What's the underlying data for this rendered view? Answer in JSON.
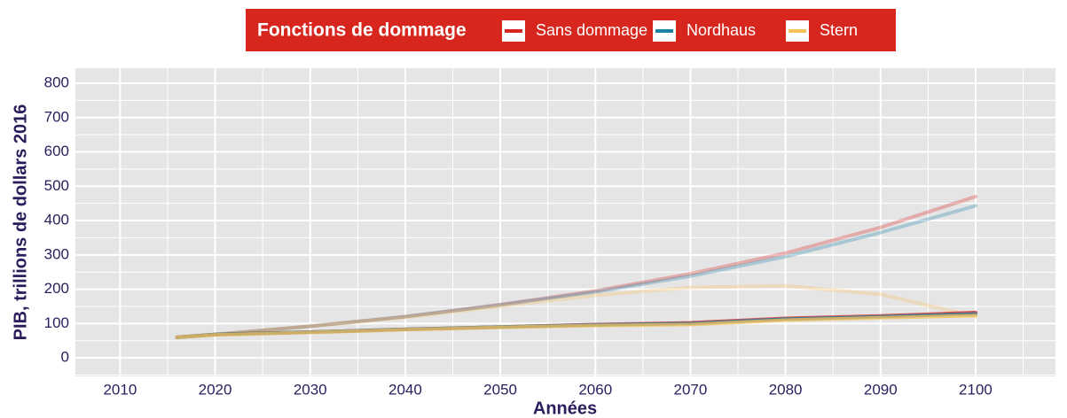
{
  "chart_data": {
    "type": "line",
    "legend_title": "Fonctions de dommage",
    "xlabel": "Années",
    "ylabel": "PIB, trillions de dollars 2016",
    "x": [
      2016,
      2020,
      2030,
      2040,
      2050,
      2060,
      2070,
      2080,
      2090,
      2100
    ],
    "series": [
      {
        "name": "Sans dommage",
        "color": "#d7261e",
        "values": [
          60,
          68,
          75,
          83,
          90,
          97,
          102,
          115,
          122,
          132
        ],
        "faded_values": [
          60,
          68,
          92,
          120,
          155,
          195,
          245,
          305,
          380,
          470
        ]
      },
      {
        "name": "Nordhaus",
        "color": "#1f80a8",
        "values": [
          60,
          68,
          75,
          83,
          90,
          96,
          100,
          113,
          120,
          128
        ],
        "faded_values": [
          60,
          68,
          92,
          120,
          154,
          192,
          238,
          295,
          365,
          443
        ]
      },
      {
        "name": "Stern",
        "color": "#f5c15a",
        "values": [
          60,
          67,
          74,
          82,
          89,
          94,
          97,
          110,
          117,
          123
        ],
        "faded_values": [
          60,
          68,
          92,
          118,
          150,
          182,
          205,
          210,
          185,
          120
        ]
      }
    ],
    "xlim": [
      2005.3,
      2108.4
    ],
    "xticks": [
      2010,
      2020,
      2030,
      2040,
      2050,
      2060,
      2070,
      2080,
      2090,
      2100
    ],
    "ylim": [
      -54,
      844
    ],
    "yticks": [
      0,
      100,
      200,
      300,
      400,
      500,
      600,
      700,
      800
    ],
    "grid": true,
    "legend_position": "top"
  }
}
